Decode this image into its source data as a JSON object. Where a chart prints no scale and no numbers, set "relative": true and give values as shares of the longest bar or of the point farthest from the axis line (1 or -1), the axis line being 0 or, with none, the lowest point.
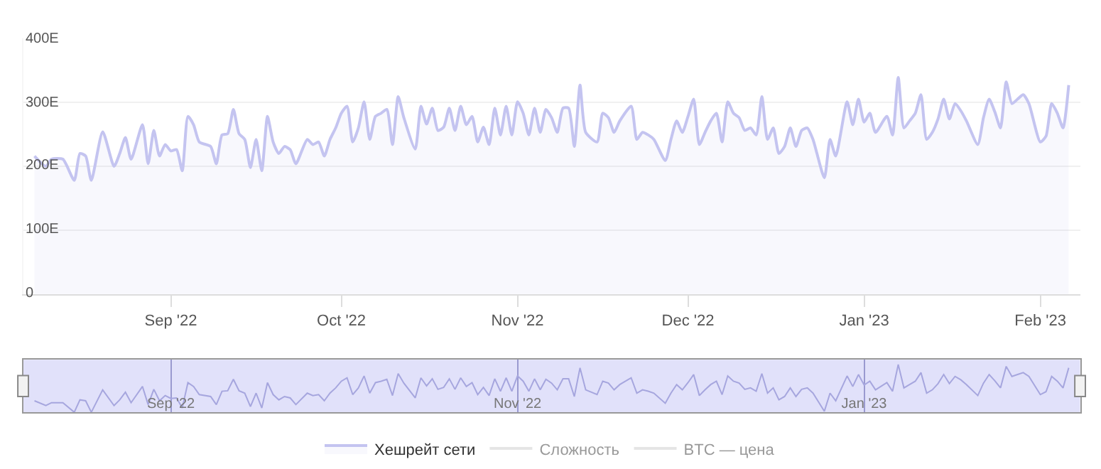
{
  "chart_data": [
    {
      "type": "area",
      "x": [
        "2022-08-08",
        "2022-08-10",
        "2022-08-11",
        "2022-08-13",
        "2022-08-15",
        "2022-08-16",
        "2022-08-17",
        "2022-08-18",
        "2022-08-20",
        "2022-08-22",
        "2022-08-23",
        "2022-08-24",
        "2022-08-25",
        "2022-08-27",
        "2022-08-28",
        "2022-08-29",
        "2022-08-30",
        "2022-08-31",
        "2022-09-01",
        "2022-09-02",
        "2022-09-03",
        "2022-09-04",
        "2022-09-05",
        "2022-09-06",
        "2022-09-08",
        "2022-09-09",
        "2022-09-10",
        "2022-09-11",
        "2022-09-12",
        "2022-09-13",
        "2022-09-14",
        "2022-09-15",
        "2022-09-16",
        "2022-09-17",
        "2022-09-18",
        "2022-09-19",
        "2022-09-20",
        "2022-09-21",
        "2022-09-22",
        "2022-09-23",
        "2022-09-25",
        "2022-09-26",
        "2022-09-27",
        "2022-09-28",
        "2022-09-29",
        "2022-09-30",
        "2022-10-01",
        "2022-10-02",
        "2022-10-03",
        "2022-10-04",
        "2022-10-05",
        "2022-10-06",
        "2022-10-07",
        "2022-10-08",
        "2022-10-09",
        "2022-10-10",
        "2022-10-11",
        "2022-10-12",
        "2022-10-14",
        "2022-10-15",
        "2022-10-16",
        "2022-10-17",
        "2022-10-18",
        "2022-10-19",
        "2022-10-20",
        "2022-10-21",
        "2022-10-22",
        "2022-10-23",
        "2022-10-24",
        "2022-10-25",
        "2022-10-26",
        "2022-10-27",
        "2022-10-28",
        "2022-10-29",
        "2022-10-30",
        "2022-10-31",
        "2022-11-01",
        "2022-11-02",
        "2022-11-03",
        "2022-11-04",
        "2022-11-05",
        "2022-11-06",
        "2022-11-07",
        "2022-11-08",
        "2022-11-09",
        "2022-11-10",
        "2022-11-11",
        "2022-11-12",
        "2022-11-13",
        "2022-11-15",
        "2022-11-16",
        "2022-11-17",
        "2022-11-18",
        "2022-11-19",
        "2022-11-21",
        "2022-11-22",
        "2022-11-23",
        "2022-11-24",
        "2022-11-25",
        "2022-11-27",
        "2022-11-28",
        "2022-11-29",
        "2022-11-30",
        "2022-12-01",
        "2022-12-02",
        "2022-12-03",
        "2022-12-04",
        "2022-12-05",
        "2022-12-06",
        "2022-12-07",
        "2022-12-08",
        "2022-12-09",
        "2022-12-10",
        "2022-12-11",
        "2022-12-12",
        "2022-12-13",
        "2022-12-14",
        "2022-12-15",
        "2022-12-16",
        "2022-12-17",
        "2022-12-18",
        "2022-12-19",
        "2022-12-20",
        "2022-12-21",
        "2022-12-22",
        "2022-12-23",
        "2022-12-25",
        "2022-12-26",
        "2022-12-27",
        "2022-12-29",
        "2022-12-30",
        "2022-12-31",
        "2023-01-01",
        "2023-01-02",
        "2023-01-03",
        "2023-01-05",
        "2023-01-06",
        "2023-01-07",
        "2023-01-08",
        "2023-01-09",
        "2023-01-10",
        "2023-01-11",
        "2023-01-12",
        "2023-01-13",
        "2023-01-14",
        "2023-01-15",
        "2023-01-16",
        "2023-01-17",
        "2023-01-18",
        "2023-01-19",
        "2023-01-21",
        "2023-01-22",
        "2023-01-23",
        "2023-01-24",
        "2023-01-25",
        "2023-01-26",
        "2023-01-27",
        "2023-01-28",
        "2023-01-29",
        "2023-01-30",
        "2023-02-01",
        "2023-02-02",
        "2023-02-03",
        "2023-02-04",
        "2023-02-05",
        "2023-02-06"
      ],
      "series": [
        {
          "name": "Хешрейт сети",
          "color": "#c4c4f0",
          "values": [
            216,
            200,
            211,
            211,
            178,
            220,
            216,
            178,
            254,
            200,
            220,
            245,
            211,
            265,
            204,
            256,
            216,
            234,
            224,
            226,
            193,
            278,
            265,
            238,
            231,
            204,
            249,
            251,
            289,
            251,
            242,
            198,
            242,
            193,
            278,
            238,
            220,
            231,
            226,
            204,
            242,
            234,
            238,
            216,
            242,
            260,
            283,
            294,
            238,
            260,
            301,
            242,
            278,
            283,
            289,
            234,
            309,
            276,
            227,
            294,
            266,
            291,
            256,
            261,
            291,
            256,
            294,
            265,
            278,
            238,
            261,
            234,
            291,
            249,
            294,
            249,
            301,
            283,
            249,
            291,
            253,
            289,
            276,
            253,
            291,
            291,
            231,
            327,
            253,
            238,
            283,
            276,
            253,
            271,
            294,
            242,
            253,
            249,
            242,
            209,
            242,
            271,
            253,
            278,
            305,
            234,
            253,
            271,
            283,
            238,
            301,
            283,
            276,
            256,
            260,
            249,
            309,
            242,
            260,
            220,
            231,
            260,
            231,
            256,
            260,
            242,
            182,
            242,
            216,
            301,
            265,
            305,
            269,
            283,
            253,
            278,
            249,
            339,
            260,
            271,
            283,
            312,
            242,
            253,
            274,
            305,
            274,
            298,
            287,
            271,
            234,
            276,
            305,
            285,
            260,
            332,
            298,
            305,
            312,
            298,
            238,
            247,
            298,
            283,
            260,
            327
          ]
        },
        {
          "name": "Сложность",
          "color": "#cccccc",
          "values": [
            null,
            null,
            null,
            null,
            null,
            null,
            null,
            null,
            null,
            null,
            null,
            null,
            null,
            null,
            null,
            null,
            null,
            null,
            null,
            null,
            null,
            null,
            null,
            null,
            null,
            null,
            null,
            null,
            null,
            null,
            null,
            null,
            null,
            null,
            null,
            null,
            null,
            null,
            null,
            null,
            null,
            null,
            null,
            null,
            null,
            null,
            null,
            null,
            null,
            null,
            null,
            null,
            null,
            null,
            null,
            null,
            null,
            null,
            null,
            null,
            null,
            null,
            null,
            null,
            null,
            null,
            null,
            null,
            null,
            null,
            null,
            null,
            null,
            null,
            null,
            null,
            null,
            null,
            null,
            null,
            null,
            null,
            null,
            null,
            null,
            null,
            null,
            null,
            null,
            null,
            null,
            null,
            null,
            null,
            null,
            null,
            null,
            null,
            null,
            null,
            null,
            null,
            null,
            null,
            null,
            null,
            null,
            null,
            null,
            null,
            null,
            null,
            null,
            null,
            null,
            null,
            null,
            null,
            null,
            null,
            null,
            null,
            null,
            null,
            null,
            null,
            null,
            null,
            null,
            null,
            null,
            null,
            null,
            null,
            null,
            null,
            null,
            null,
            null,
            null,
            null,
            null,
            null,
            null,
            null,
            null,
            null,
            null,
            null,
            null,
            null,
            null,
            null,
            null,
            null,
            null,
            null,
            null,
            null,
            null,
            null,
            null,
            null,
            null,
            null,
            null
          ]
        },
        {
          "name": "BTC — цена",
          "color": "#cccccc",
          "values": [
            null,
            null,
            null,
            null,
            null,
            null,
            null,
            null,
            null,
            null,
            null,
            null,
            null,
            null,
            null,
            null,
            null,
            null,
            null,
            null,
            null,
            null,
            null,
            null,
            null,
            null,
            null,
            null,
            null,
            null,
            null,
            null,
            null,
            null,
            null,
            null,
            null,
            null,
            null,
            null,
            null,
            null,
            null,
            null,
            null,
            null,
            null,
            null,
            null,
            null,
            null,
            null,
            null,
            null,
            null,
            null,
            null,
            null,
            null,
            null,
            null,
            null,
            null,
            null,
            null,
            null,
            null,
            null,
            null,
            null,
            null,
            null,
            null,
            null,
            null,
            null,
            null,
            null,
            null,
            null,
            null,
            null,
            null,
            null,
            null,
            null,
            null,
            null,
            null,
            null,
            null,
            null,
            null,
            null,
            null,
            null,
            null,
            null,
            null,
            null,
            null,
            null,
            null,
            null,
            null,
            null,
            null,
            null,
            null,
            null,
            null,
            null,
            null,
            null,
            null,
            null,
            null,
            null,
            null,
            null,
            null,
            null,
            null,
            null,
            null,
            null,
            null,
            null,
            null,
            null,
            null,
            null,
            null,
            null,
            null,
            null,
            null,
            null,
            null,
            null,
            null,
            null,
            null,
            null,
            null,
            null,
            null,
            null,
            null,
            null,
            null,
            null,
            null,
            null,
            null,
            null,
            null,
            null,
            null,
            null,
            null,
            null,
            null,
            null,
            null,
            null
          ]
        }
      ],
      "xlim": [
        "2022-08-06",
        "2023-02-08"
      ],
      "xticks": [
        {
          "value": "2022-09-01",
          "label": "Sep '22"
        },
        {
          "value": "2022-10-01",
          "label": "Oct '22"
        },
        {
          "value": "2022-11-01",
          "label": "Nov '22"
        },
        {
          "value": "2022-12-01",
          "label": "Dec '22"
        },
        {
          "value": "2023-01-01",
          "label": "Jan '23"
        },
        {
          "value": "2023-02-01",
          "label": "Feb '23"
        }
      ],
      "ylim": [
        0,
        400
      ],
      "yticks": [
        0,
        {
          "value": 100,
          "label": "100E"
        },
        {
          "value": 200,
          "label": "200E"
        },
        {
          "value": 300,
          "label": "300E"
        },
        {
          "value": 400,
          "label": "400E"
        }
      ],
      "grid": "y",
      "legend": "bottom"
    },
    {
      "type": "line",
      "x": [
        "2022-08-08",
        "2022-08-10",
        "2022-08-11",
        "2022-08-13",
        "2022-08-15",
        "2022-08-16",
        "2022-08-17",
        "2022-08-18",
        "2022-08-20",
        "2022-08-22",
        "2022-08-23",
        "2022-08-24",
        "2022-08-25",
        "2022-08-27",
        "2022-08-28",
        "2022-08-29",
        "2022-08-30",
        "2022-08-31",
        "2022-09-01",
        "2022-09-02",
        "2022-09-03",
        "2022-09-04",
        "2022-09-05",
        "2022-09-06",
        "2022-09-08",
        "2022-09-09",
        "2022-09-10",
        "2022-09-11",
        "2022-09-12",
        "2022-09-13",
        "2022-09-14",
        "2022-09-15",
        "2022-09-16",
        "2022-09-17",
        "2022-09-18",
        "2022-09-19",
        "2022-09-20",
        "2022-09-21",
        "2022-09-22",
        "2022-09-23",
        "2022-09-25",
        "2022-09-26",
        "2022-09-27",
        "2022-09-28",
        "2022-09-29",
        "2022-09-30",
        "2022-10-01",
        "2022-10-02",
        "2022-10-03",
        "2022-10-04",
        "2022-10-05",
        "2022-10-06",
        "2022-10-07",
        "2022-10-08",
        "2022-10-09",
        "2022-10-10",
        "2022-10-11",
        "2022-10-12",
        "2022-10-14",
        "2022-10-15",
        "2022-10-16",
        "2022-10-17",
        "2022-10-18",
        "2022-10-19",
        "2022-10-20",
        "2022-10-21",
        "2022-10-22",
        "2022-10-23",
        "2022-10-24",
        "2022-10-25",
        "2022-10-26",
        "2022-10-27",
        "2022-10-28",
        "2022-10-29",
        "2022-10-30",
        "2022-10-31",
        "2022-11-01",
        "2022-11-02",
        "2022-11-03",
        "2022-11-04",
        "2022-11-05",
        "2022-11-06",
        "2022-11-07",
        "2022-11-08",
        "2022-11-09",
        "2022-11-10",
        "2022-11-11",
        "2022-11-12",
        "2022-11-13",
        "2022-11-15",
        "2022-11-16",
        "2022-11-17",
        "2022-11-18",
        "2022-11-19",
        "2022-11-21",
        "2022-11-22",
        "2022-11-23",
        "2022-11-24",
        "2022-11-25",
        "2022-11-27",
        "2022-11-28",
        "2022-11-29",
        "2022-11-30",
        "2022-12-01",
        "2022-12-02",
        "2022-12-03",
        "2022-12-04",
        "2022-12-05",
        "2022-12-06",
        "2022-12-07",
        "2022-12-08",
        "2022-12-09",
        "2022-12-10",
        "2022-12-11",
        "2022-12-12",
        "2022-12-13",
        "2022-12-14",
        "2022-12-15",
        "2022-12-16",
        "2022-12-17",
        "2022-12-18",
        "2022-12-19",
        "2022-12-20",
        "2022-12-21",
        "2022-12-22",
        "2022-12-23",
        "2022-12-25",
        "2022-12-26",
        "2022-12-27",
        "2022-12-29",
        "2022-12-30",
        "2022-12-31",
        "2023-01-01",
        "2023-01-02",
        "2023-01-03",
        "2023-01-05",
        "2023-01-06",
        "2023-01-07",
        "2023-01-08",
        "2023-01-09",
        "2023-01-10",
        "2023-01-11",
        "2023-01-12",
        "2023-01-13",
        "2023-01-14",
        "2023-01-15",
        "2023-01-16",
        "2023-01-17",
        "2023-01-18",
        "2023-01-19",
        "2023-01-21",
        "2023-01-22",
        "2023-01-23",
        "2023-01-24",
        "2023-01-25",
        "2023-01-26",
        "2023-01-27",
        "2023-01-28",
        "2023-01-29",
        "2023-01-30",
        "2023-02-01",
        "2023-02-02",
        "2023-02-03",
        "2023-02-04",
        "2023-02-05",
        "2023-02-06"
      ],
      "series": [
        {
          "color": "#a6a6de",
          "values": [
            0.24,
            0.14,
            0.2,
            0.2,
            0,
            0.26,
            0.24,
            0,
            0.47,
            0.14,
            0.26,
            0.42,
            0.2,
            0.54,
            0.16,
            0.48,
            0.24,
            0.35,
            0.29,
            0.3,
            0.09,
            0.62,
            0.54,
            0.37,
            0.33,
            0.16,
            0.44,
            0.45,
            0.69,
            0.45,
            0.4,
            0.12,
            0.4,
            0.09,
            0.62,
            0.37,
            0.26,
            0.33,
            0.3,
            0.16,
            0.4,
            0.35,
            0.37,
            0.24,
            0.4,
            0.51,
            0.65,
            0.72,
            0.37,
            0.51,
            0.76,
            0.4,
            0.62,
            0.65,
            0.69,
            0.35,
            0.81,
            0.61,
            0.3,
            0.72,
            0.55,
            0.7,
            0.48,
            0.52,
            0.7,
            0.48,
            0.72,
            0.54,
            0.62,
            0.37,
            0.52,
            0.35,
            0.7,
            0.44,
            0.72,
            0.44,
            0.76,
            0.65,
            0.44,
            0.7,
            0.47,
            0.69,
            0.61,
            0.47,
            0.7,
            0.7,
            0.33,
            0.93,
            0.47,
            0.37,
            0.65,
            0.61,
            0.47,
            0.58,
            0.72,
            0.4,
            0.47,
            0.44,
            0.4,
            0.19,
            0.4,
            0.58,
            0.47,
            0.62,
            0.79,
            0.35,
            0.47,
            0.58,
            0.65,
            0.37,
            0.76,
            0.65,
            0.61,
            0.48,
            0.51,
            0.44,
            0.81,
            0.4,
            0.51,
            0.26,
            0.33,
            0.51,
            0.33,
            0.48,
            0.51,
            0.4,
            0.02,
            0.4,
            0.24,
            0.76,
            0.54,
            0.79,
            0.57,
            0.65,
            0.47,
            0.62,
            0.44,
            1,
            0.51,
            0.58,
            0.65,
            0.83,
            0.4,
            0.47,
            0.6,
            0.79,
            0.6,
            0.75,
            0.68,
            0.58,
            0.35,
            0.61,
            0.79,
            0.66,
            0.51,
            0.96,
            0.75,
            0.79,
            0.83,
            0.75,
            0.37,
            0.43,
            0.75,
            0.65,
            0.51,
            0.93
          ]
        }
      ],
      "xlim": [
        "2022-08-06",
        "2023-02-08"
      ],
      "xticks": [
        {
          "value": "2022-09-01",
          "label": "Sep '22"
        },
        {
          "value": "2022-11-01",
          "label": "Nov '22"
        },
        {
          "value": "2023-01-01",
          "label": "Jan '23"
        }
      ],
      "relative": true,
      "grid": "x",
      "tick_labels": "x"
    }
  ]
}
